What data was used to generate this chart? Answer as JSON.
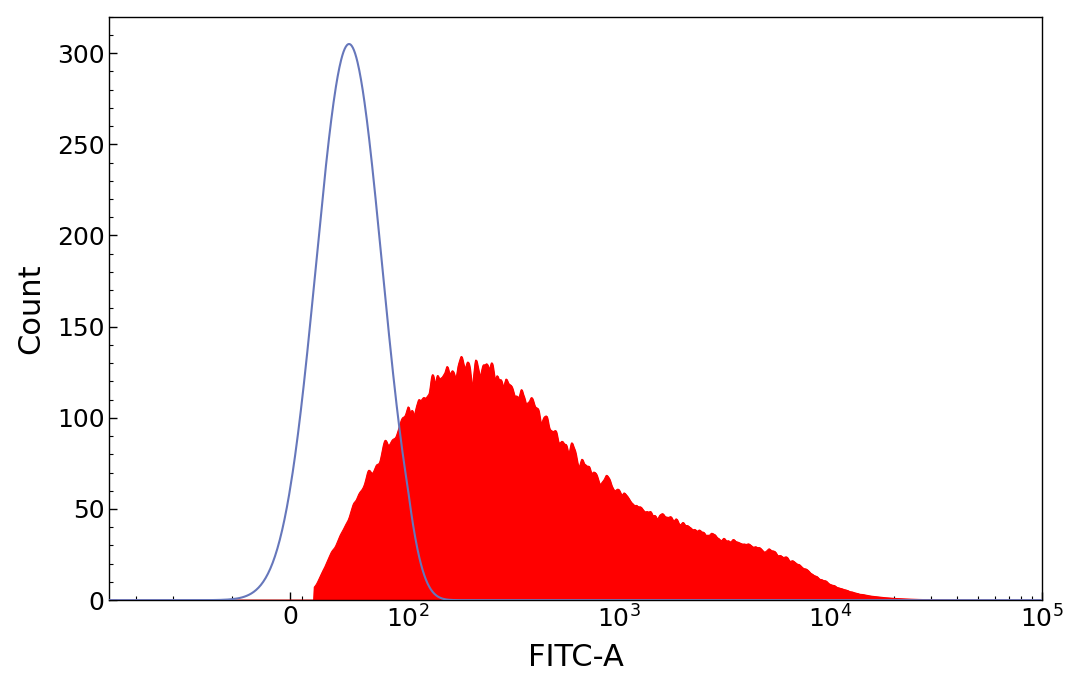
{
  "title": "",
  "xlabel": "FITC-A",
  "ylabel": "Count",
  "ylim": [
    0,
    320
  ],
  "yticks": [
    0,
    50,
    100,
    150,
    200,
    250,
    300
  ],
  "blue_line_color": "#6677bb",
  "red_fill_color": "#ff0000",
  "background_color": "#ffffff",
  "label_fontsize": 22,
  "tick_fontsize": 18,
  "linthresh": 100,
  "linscale": 0.5
}
